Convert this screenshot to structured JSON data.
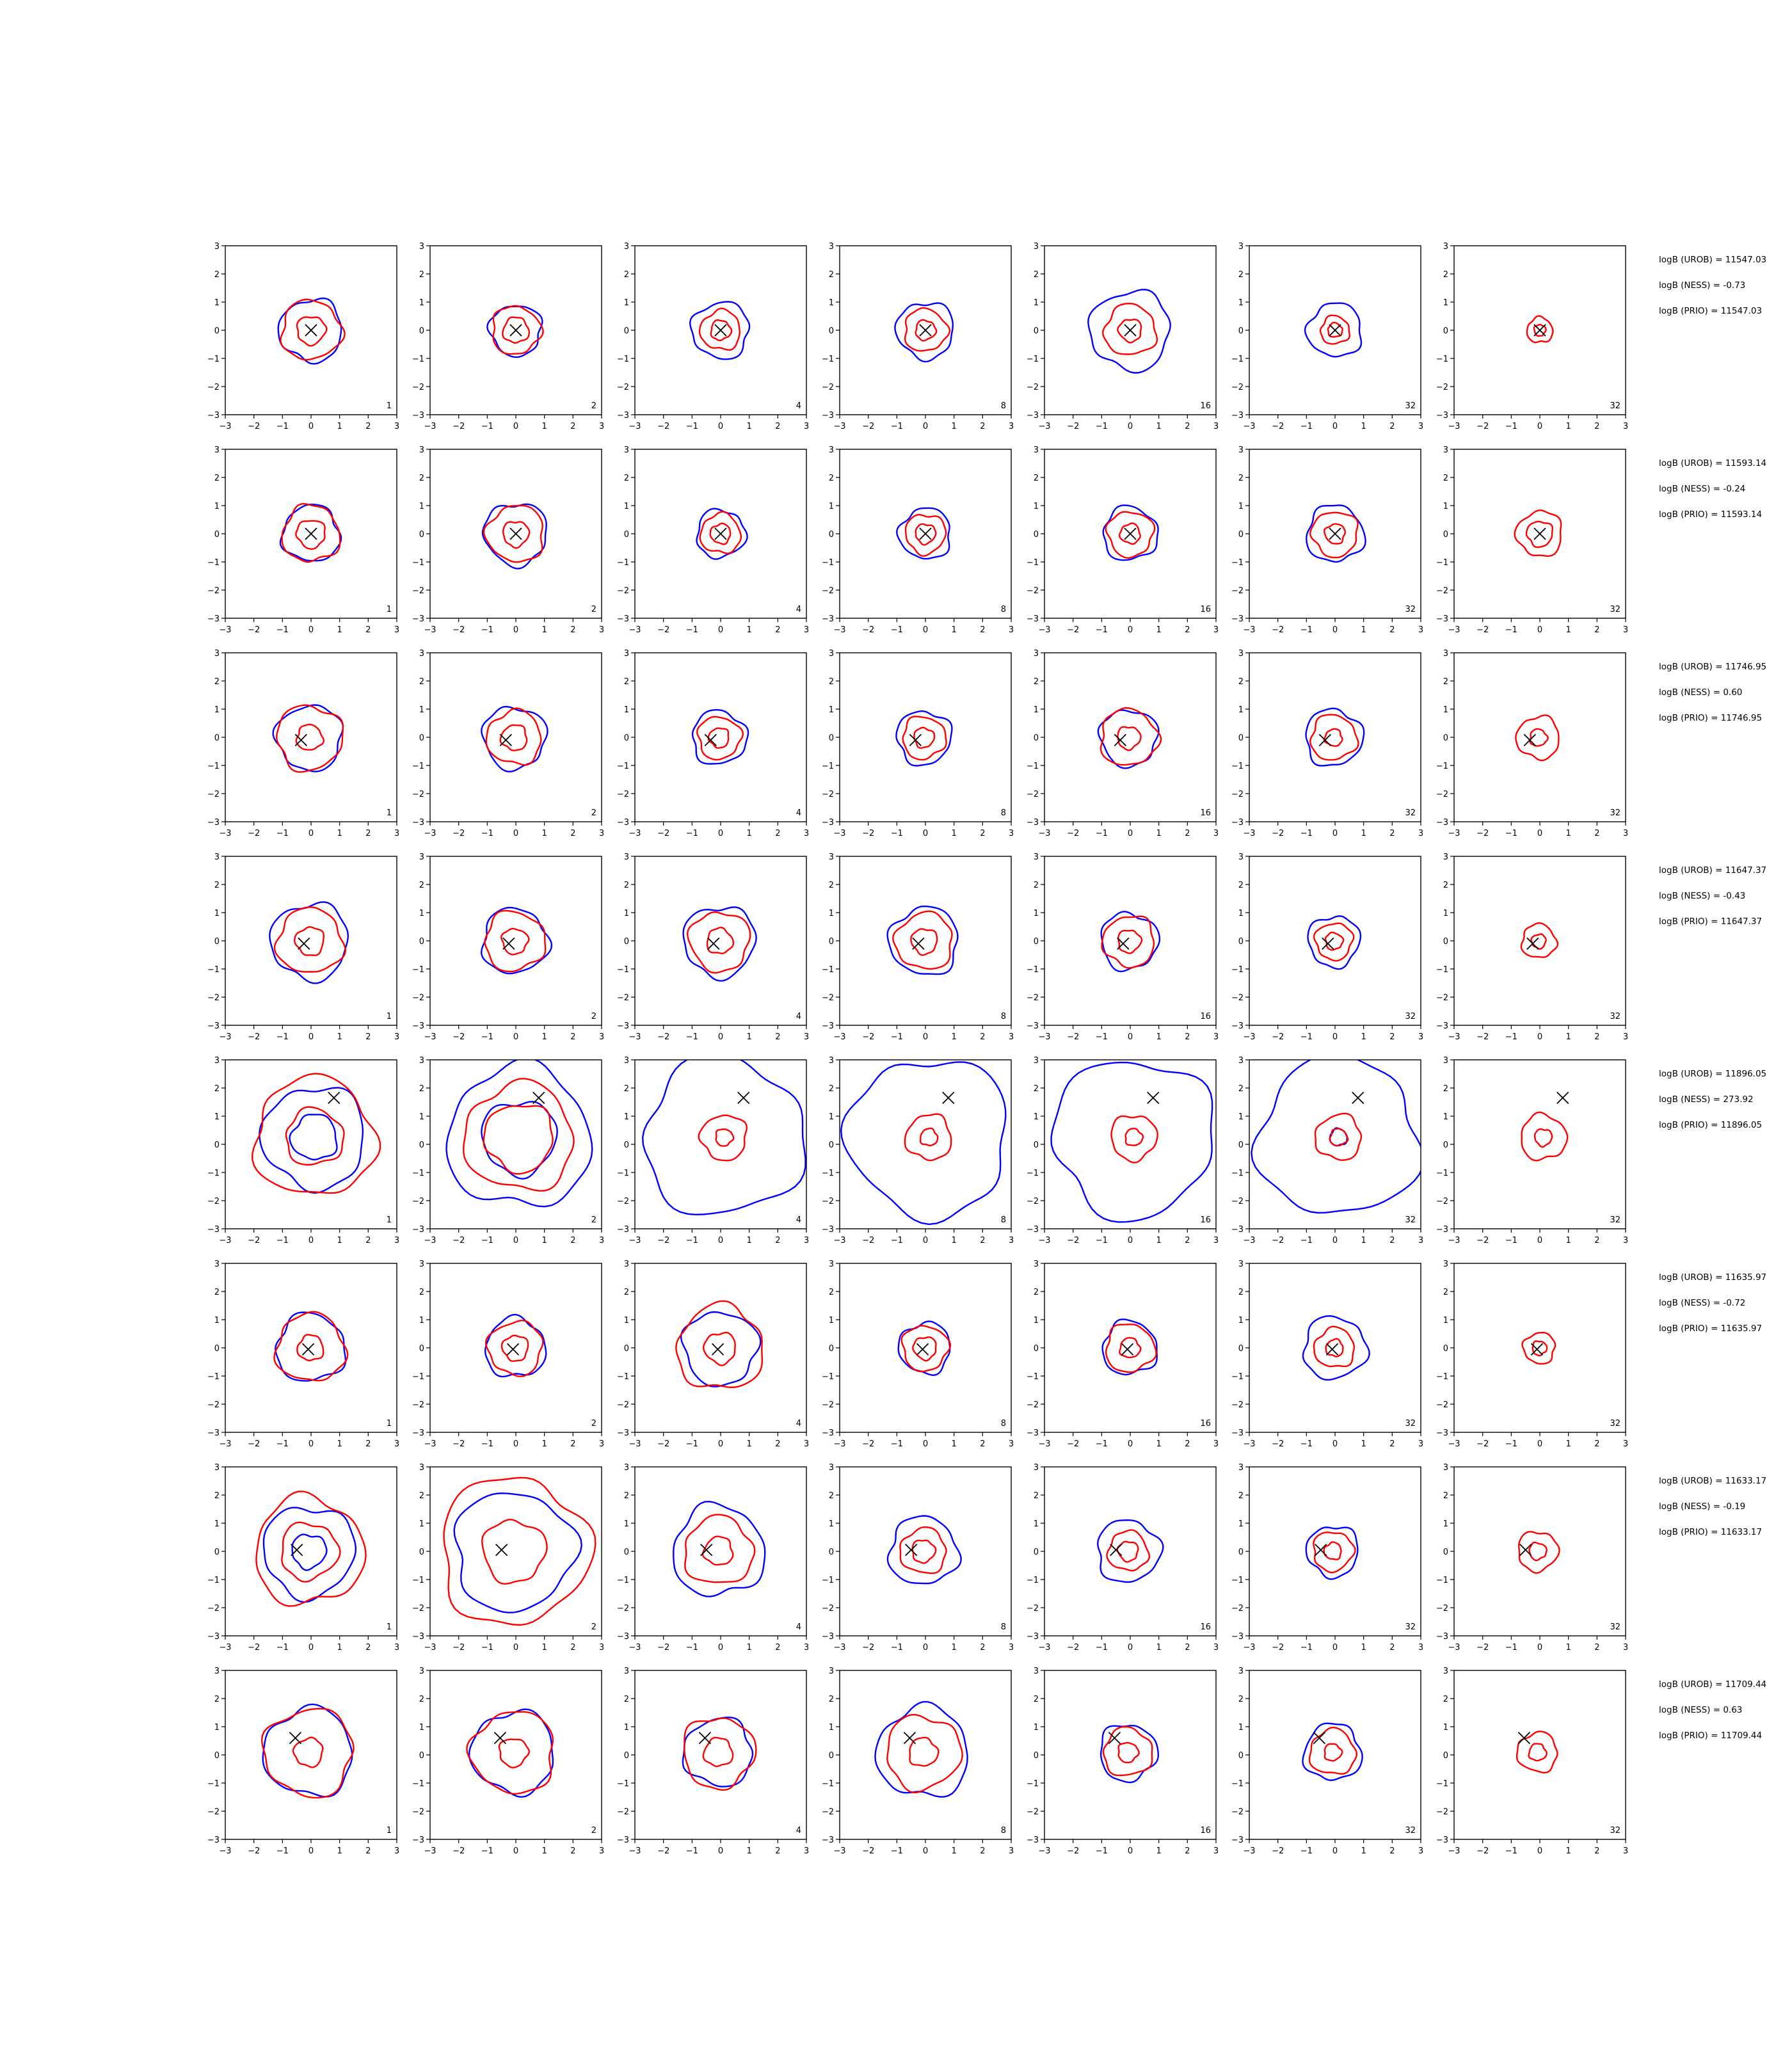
{
  "chart_data": {
    "type": "contour-grid",
    "title": "",
    "xlim": [
      -3,
      3
    ],
    "ylim": [
      -3,
      3
    ],
    "ticks": [
      "−3",
      "−2",
      "−1",
      "0",
      "1",
      "2",
      "3"
    ],
    "tick_values": [
      -3,
      -2,
      -1,
      0,
      1,
      2,
      3
    ],
    "column_labels": [
      "1",
      "2",
      "4",
      "8",
      "16",
      "32",
      "32"
    ],
    "colors": {
      "outer_contour": "#0000ff",
      "inner_contour": "#ff0000",
      "marker": "#000000"
    },
    "rows": [
      {
        "marker": [
          0.0,
          0.0
        ],
        "stats": [
          "logB (UROB) = 11547.03",
          "logB (NESS) = -0.73",
          "logB (PRIO) = 11547.03"
        ],
        "contours": [
          {
            "blue": [
              1.1
            ],
            "red": [
              1.05,
              0.5
            ]
          },
          {
            "blue": [
              0.9
            ],
            "red": [
              0.85,
              0.45
            ]
          },
          {
            "blue": [
              1.0
            ],
            "red": [
              0.7,
              0.35
            ]
          },
          {
            "blue": [
              1.0
            ],
            "red": [
              0.75,
              0.35
            ]
          },
          {
            "blue": [
              1.4
            ],
            "red": [
              0.9,
              0.4
            ]
          },
          {
            "blue": [
              0.95
            ],
            "red": [
              0.5,
              0.25
            ]
          },
          {
            "blue": [],
            "red": [
              0.45,
              0.2
            ]
          }
        ]
      },
      {
        "marker": [
          0.0,
          0.0
        ],
        "stats": [
          "logB (UROB) = 11593.14",
          "logB (NESS) = -0.24",
          "logB (PRIO) = 11593.14"
        ],
        "contours": [
          {
            "blue": [
              1.0
            ],
            "red": [
              1.0,
              0.5
            ]
          },
          {
            "blue": [
              1.1
            ],
            "red": [
              1.0,
              0.45
            ]
          },
          {
            "blue": [
              0.85
            ],
            "red": [
              0.7,
              0.35
            ]
          },
          {
            "blue": [
              0.9
            ],
            "red": [
              0.7,
              0.35
            ]
          },
          {
            "blue": [
              0.95
            ],
            "red": [
              0.8,
              0.35
            ]
          },
          {
            "blue": [
              1.0
            ],
            "red": [
              0.8,
              0.35
            ]
          },
          {
            "blue": [],
            "red": [
              0.8,
              0.45
            ]
          }
        ]
      },
      {
        "marker": [
          -0.35,
          -0.1
        ],
        "stats": [
          "logB (UROB) = 11746.95",
          "logB (NESS) = 0.60",
          "logB (PRIO) = 11746.95"
        ],
        "contours": [
          {
            "blue": [
              1.15
            ],
            "red": [
              1.15,
              0.45
            ]
          },
          {
            "blue": [
              1.1
            ],
            "red": [
              0.95,
              0.45
            ]
          },
          {
            "blue": [
              0.95
            ],
            "red": [
              0.75,
              0.35
            ]
          },
          {
            "blue": [
              0.95
            ],
            "red": [
              0.75,
              0.35
            ]
          },
          {
            "blue": [
              1.0
            ],
            "red": [
              1.0,
              0.4
            ]
          },
          {
            "blue": [
              1.0
            ],
            "red": [
              0.8,
              0.3
            ]
          },
          {
            "blue": [],
            "red": [
              0.75,
              0.3
            ]
          }
        ]
      },
      {
        "marker": [
          -0.25,
          -0.1
        ],
        "stats": [
          "logB (UROB) = 11647.37",
          "logB (NESS) = -0.43",
          "logB (PRIO) = 11647.37"
        ],
        "contours": [
          {
            "blue": [
              1.35
            ],
            "red": [
              1.15,
              0.5
            ]
          },
          {
            "blue": [
              1.15
            ],
            "red": [
              1.05,
              0.45
            ]
          },
          {
            "blue": [
              1.25
            ],
            "red": [
              1.05,
              0.45
            ]
          },
          {
            "blue": [
              1.2
            ],
            "red": [
              1.0,
              0.45
            ]
          },
          {
            "blue": [
              1.0
            ],
            "red": [
              0.9,
              0.4
            ]
          },
          {
            "blue": [
              0.9
            ],
            "red": [
              0.65,
              0.3
            ]
          },
          {
            "blue": [],
            "red": [
              0.6,
              0.25
            ]
          }
        ]
      },
      {
        "marker": [
          0.8,
          1.65
        ],
        "stats": [
          "logB (UROB) = 11896.05",
          "logB (NESS) = 273.92",
          "logB (PRIO) = 11896.05"
        ],
        "contours": [
          {
            "blue": [
              1.8,
              0.8
            ],
            "red": [
              2.1,
              1.0
            ]
          },
          {
            "blue": [
              2.5,
              1.3
            ],
            "red": [
              1.9,
              1.2
            ]
          },
          {
            "blue": [
              2.8
            ],
            "red": [
              0.8,
              0.3
            ]
          },
          {
            "blue": [
              2.8
            ],
            "red": [
              0.8,
              0.3
            ]
          },
          {
            "blue": [
              2.8
            ],
            "red": [
              0.8,
              0.3
            ]
          },
          {
            "blue": [
              2.8,
              0.3
            ],
            "red": [
              0.8,
              0.3
            ]
          },
          {
            "blue": [],
            "red": [
              0.8,
              0.3
            ]
          }
        ]
      },
      {
        "marker": [
          -0.1,
          -0.05
        ],
        "stats": [
          "logB (UROB) = 11635.97",
          "logB (NESS) = -0.72",
          "logB (PRIO) = 11635.97"
        ],
        "contours": [
          {
            "blue": [
              1.2
            ],
            "red": [
              1.2,
              0.45
            ]
          },
          {
            "blue": [
              1.05
            ],
            "red": [
              0.95,
              0.45
            ]
          },
          {
            "blue": [
              1.3
            ],
            "red": [
              1.5,
              0.55
            ]
          },
          {
            "blue": [
              0.9
            ],
            "red": [
              0.8,
              0.4
            ]
          },
          {
            "blue": [
              0.95
            ],
            "red": [
              0.85,
              0.35
            ]
          },
          {
            "blue": [
              1.1
            ],
            "red": [
              0.7,
              0.3
            ]
          },
          {
            "blue": [],
            "red": [
              0.55,
              0.25
            ]
          }
        ]
      },
      {
        "marker": [
          -0.5,
          0.05
        ],
        "stats": [
          "logB (UROB) = 11633.17",
          "logB (NESS) = -0.19",
          "logB (PRIO) = 11633.17"
        ],
        "contours": [
          {
            "blue": [
              1.6,
              0.6
            ],
            "red": [
              1.9,
              1.0
            ]
          },
          {
            "blue": [
              2.1
            ],
            "red": [
              2.6,
              1.1
            ]
          },
          {
            "blue": [
              1.6
            ],
            "red": [
              1.2,
              0.5
            ]
          },
          {
            "blue": [
              1.2
            ],
            "red": [
              0.8,
              0.4
            ]
          },
          {
            "blue": [
              1.1
            ],
            "red": [
              0.7,
              0.35
            ]
          },
          {
            "blue": [
              0.9
            ],
            "red": [
              0.7,
              0.3
            ]
          },
          {
            "blue": [],
            "red": [
              0.7,
              0.3
            ]
          }
        ]
      },
      {
        "marker": [
          -0.55,
          0.6
        ],
        "stats": [
          "logB (UROB) = 11709.44",
          "logB (NESS) = 0.63",
          "logB (PRIO) = 11709.44"
        ],
        "contours": [
          {
            "blue": [
              1.55
            ],
            "red": [
              1.55,
              0.5
            ]
          },
          {
            "blue": [
              1.45
            ],
            "red": [
              1.45,
              0.5
            ]
          },
          {
            "blue": [
              1.2
            ],
            "red": [
              1.25,
              0.5
            ]
          },
          {
            "blue": [
              1.6
            ],
            "red": [
              1.3,
              0.5
            ]
          },
          {
            "blue": [
              1.0
            ],
            "red": [
              0.85,
              0.35
            ]
          },
          {
            "blue": [
              1.0
            ],
            "red": [
              0.8,
              0.3
            ]
          },
          {
            "blue": [],
            "red": [
              0.7,
              0.3
            ]
          }
        ]
      }
    ]
  }
}
